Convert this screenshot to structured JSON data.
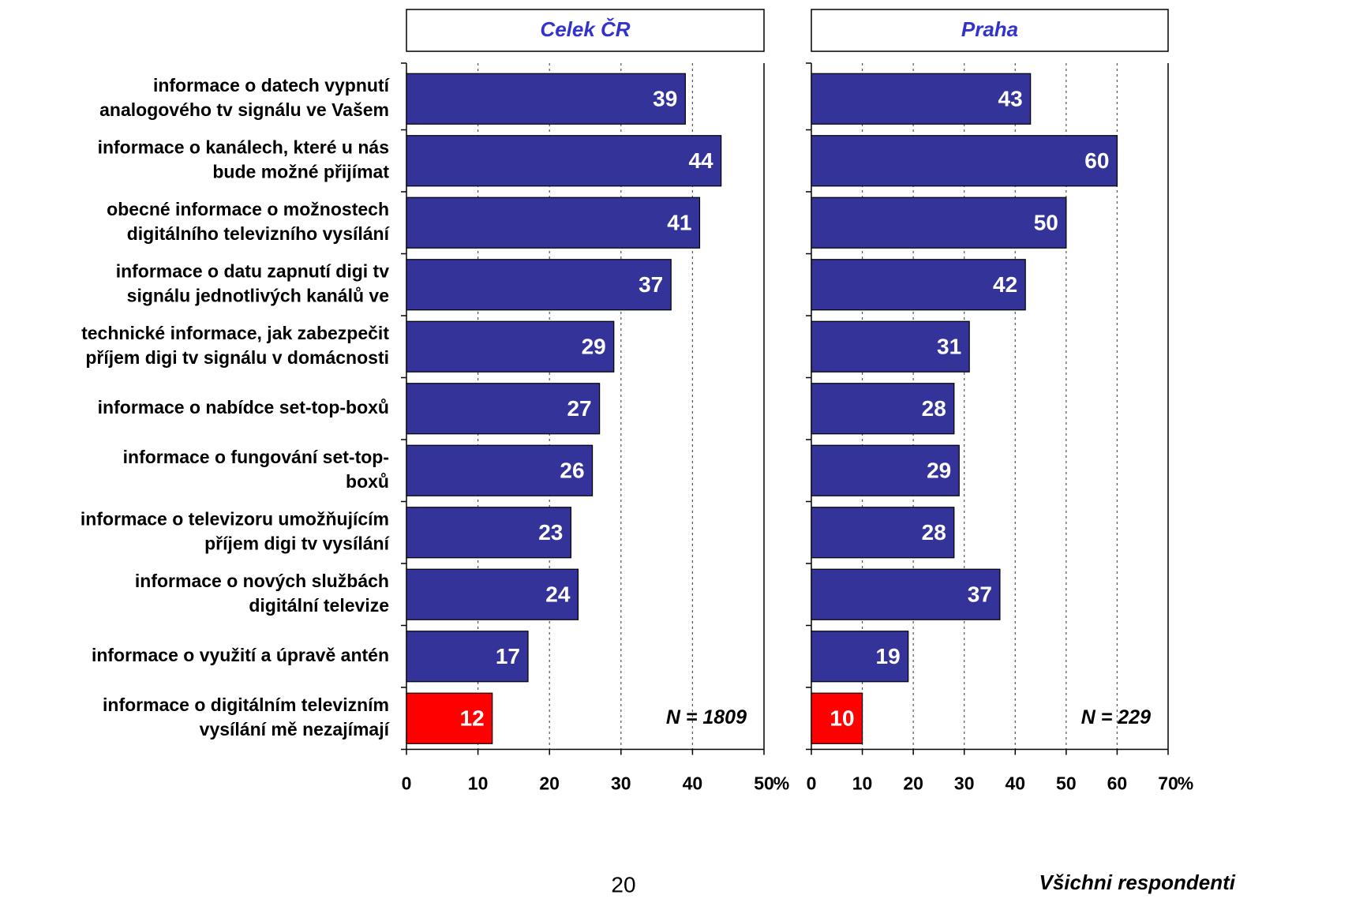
{
  "chart_data": {
    "type": "bar",
    "orientation": "horizontal",
    "categories": [
      [
        "informace o datech vypnutí",
        "analogového tv signálu ve Vašem"
      ],
      [
        "informace o kanálech, které u nás",
        "bude možné přijímat"
      ],
      [
        "obecné informace o možnostech",
        "digitálního televizního vysílání"
      ],
      [
        "informace o datu zapnutí digi tv",
        "signálu jednotlivých kanálů ve"
      ],
      [
        "technické informace, jak zabezpečit",
        "příjem digi tv signálu v domácnosti"
      ],
      [
        "informace o nabídce set-top-boxů"
      ],
      [
        "informace o fungování set-top-",
        "boxů"
      ],
      [
        "informace o televizoru umožňujícím",
        "příjem digi tv vysílání"
      ],
      [
        "informace o nových službách",
        "digitální televize"
      ],
      [
        "informace o využití a úpravě antén"
      ],
      [
        "informace o digitálním televizním",
        "vysílání mě nezajímají"
      ]
    ],
    "panels": [
      {
        "title": "Celek ČR",
        "values": [
          39,
          44,
          41,
          37,
          29,
          27,
          26,
          23,
          24,
          17,
          12
        ],
        "colors": [
          "#333399",
          "#333399",
          "#333399",
          "#333399",
          "#333399",
          "#333399",
          "#333399",
          "#333399",
          "#333399",
          "#333399",
          "#ff0000"
        ],
        "xlim": [
          0,
          50
        ],
        "xticks": [
          0,
          10,
          20,
          30,
          40,
          50
        ],
        "x_unit": "%",
        "annotation": "N = 1809",
        "grid": true
      },
      {
        "title": "Praha",
        "values": [
          43,
          60,
          50,
          42,
          31,
          28,
          29,
          28,
          37,
          19,
          10
        ],
        "colors": [
          "#333399",
          "#333399",
          "#333399",
          "#333399",
          "#333399",
          "#333399",
          "#333399",
          "#333399",
          "#333399",
          "#333399",
          "#ff0000"
        ],
        "xlim": [
          0,
          70
        ],
        "xticks": [
          0,
          10,
          20,
          30,
          40,
          50,
          60,
          70
        ],
        "x_unit": "%",
        "annotation": "N = 229",
        "grid": true
      }
    ],
    "page_number": "20",
    "footer": "Všichni respondenti"
  }
}
